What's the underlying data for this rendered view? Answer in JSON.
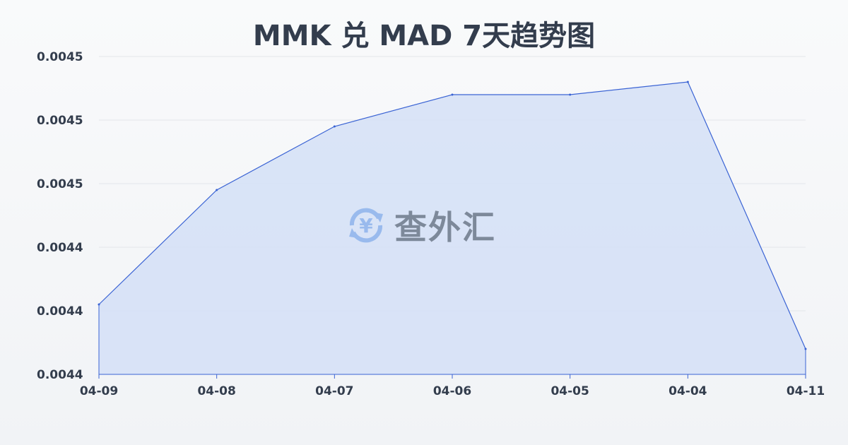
{
  "chart_data": {
    "type": "area",
    "title": "MMK 兑 MAD 7天趋势图",
    "xlabel": "",
    "ylabel": "",
    "categories": [
      "04-09",
      "04-08",
      "04-07",
      "04-06",
      "04-05",
      "04-04",
      "04-11"
    ],
    "series": [
      {
        "values": [
          0.004441,
          0.004459,
          0.004469,
          0.004474,
          0.004474,
          0.004476,
          0.004434
        ]
      }
    ],
    "ylim": [
      0.00443,
      0.00448
    ],
    "y_ticks": [
      0.00443,
      0.00444,
      0.00445,
      0.00446,
      0.00447,
      0.00448
    ],
    "y_tick_labels": [
      "0.0044",
      "0.0044",
      "0.0044",
      "0.0045",
      "0.0045",
      "0.0045"
    ],
    "grid": true,
    "colors": {
      "line": "#3a63d4",
      "fill": "#d6e1f6",
      "grid": "#e3e6ea"
    }
  },
  "watermark": {
    "text": "查外汇",
    "icon": "yuan-exchange-icon",
    "color": "#8fb4ec"
  }
}
